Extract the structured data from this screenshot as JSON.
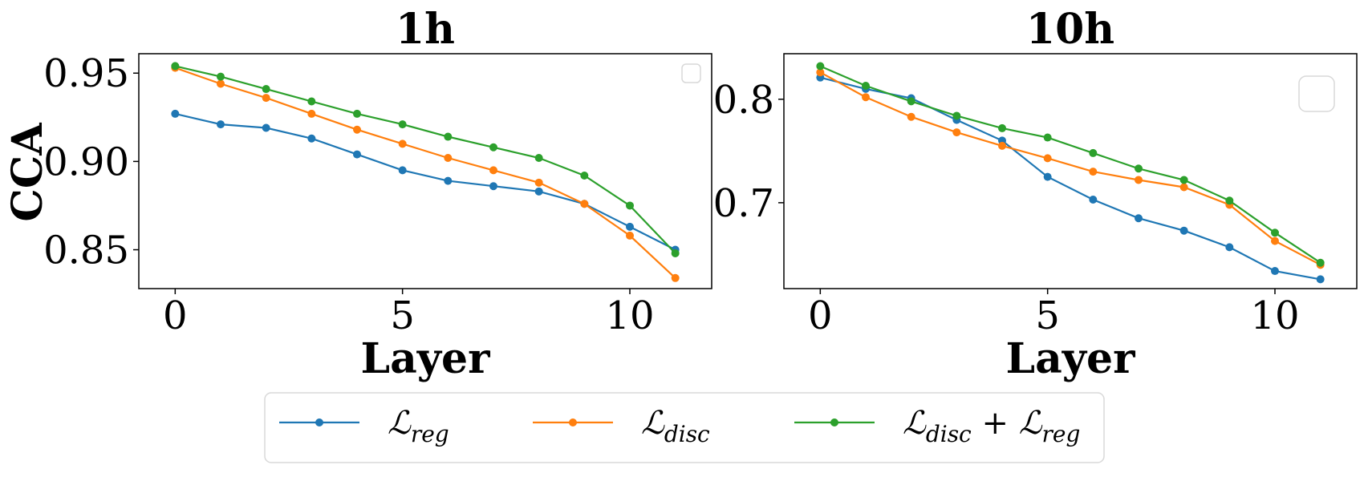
{
  "chart_data": [
    {
      "type": "line",
      "title": "1h",
      "xlabel": "Layer",
      "ylabel": "CCA",
      "xlim": [
        -0.8,
        11.8
      ],
      "ylim": [
        0.828,
        0.961
      ],
      "xticks": [
        0,
        5,
        10
      ],
      "xtick_labels": [
        "0",
        "5",
        "10"
      ],
      "yticks": [
        0.85,
        0.9,
        0.95
      ],
      "ytick_labels": [
        "0.85",
        "0.90",
        "0.95"
      ],
      "x": [
        0,
        1,
        2,
        3,
        4,
        5,
        6,
        7,
        8,
        9,
        10,
        11
      ],
      "series": [
        {
          "key": "reg",
          "color": "#1f77b4",
          "values": [
            0.927,
            0.921,
            0.919,
            0.913,
            0.904,
            0.895,
            0.889,
            0.886,
            0.883,
            0.876,
            0.863,
            0.85
          ]
        },
        {
          "key": "disc",
          "color": "#ff7f0e",
          "values": [
            0.953,
            0.944,
            0.936,
            0.927,
            0.918,
            0.91,
            0.902,
            0.895,
            0.888,
            0.876,
            0.858,
            0.834
          ]
        },
        {
          "key": "disc_reg",
          "color": "#2ca02c",
          "values": [
            0.954,
            0.948,
            0.941,
            0.934,
            0.927,
            0.921,
            0.914,
            0.908,
            0.902,
            0.892,
            0.875,
            0.848
          ]
        }
      ],
      "empty_legend_box": "top-right"
    },
    {
      "type": "line",
      "title": "10h",
      "xlabel": "Layer",
      "ylabel": "",
      "xlim": [
        -0.8,
        11.8
      ],
      "ylim": [
        0.617,
        0.844
      ],
      "xticks": [
        0,
        5,
        10
      ],
      "xtick_labels": [
        "0",
        "5",
        "10"
      ],
      "yticks": [
        0.7,
        0.8
      ],
      "ytick_labels": [
        "0.7",
        "0.8"
      ],
      "x": [
        0,
        1,
        2,
        3,
        4,
        5,
        6,
        7,
        8,
        9,
        10,
        11
      ],
      "series": [
        {
          "key": "reg",
          "color": "#1f77b4",
          "values": [
            0.821,
            0.81,
            0.801,
            0.78,
            0.76,
            0.725,
            0.703,
            0.685,
            0.673,
            0.657,
            0.634,
            0.626
          ]
        },
        {
          "key": "disc",
          "color": "#ff7f0e",
          "values": [
            0.826,
            0.802,
            0.783,
            0.768,
            0.755,
            0.743,
            0.73,
            0.722,
            0.715,
            0.698,
            0.663,
            0.64
          ]
        },
        {
          "key": "disc_reg",
          "color": "#2ca02c",
          "values": [
            0.832,
            0.813,
            0.798,
            0.784,
            0.772,
            0.763,
            0.748,
            0.733,
            0.722,
            0.702,
            0.671,
            0.642
          ]
        }
      ],
      "empty_legend_box": "top-right"
    }
  ],
  "legend": {
    "position": "bottom-center",
    "entries": [
      {
        "key": "reg",
        "color": "#1f77b4",
        "parts": [
          {
            "base": "ℒ",
            "sub": "reg"
          }
        ]
      },
      {
        "key": "disc",
        "color": "#ff7f0e",
        "parts": [
          {
            "base": "ℒ",
            "sub": "disc"
          }
        ]
      },
      {
        "key": "disc_reg",
        "color": "#2ca02c",
        "parts": [
          {
            "base": "ℒ",
            "sub": "disc"
          },
          {
            "op": " + "
          },
          {
            "base": "ℒ",
            "sub": "reg"
          }
        ]
      }
    ]
  }
}
